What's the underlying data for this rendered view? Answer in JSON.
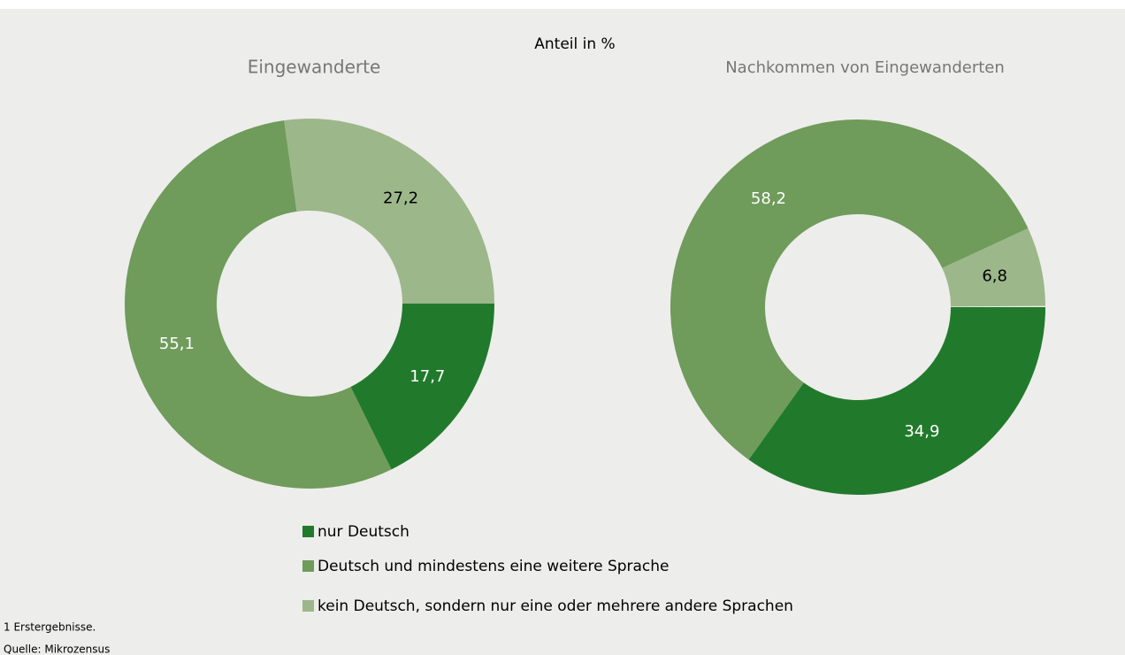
{
  "title": "Anteil in %",
  "chart_data": [
    {
      "type": "pie",
      "title": "Eingewanderte",
      "categories": [
        "nur Deutsch",
        "Deutsch und mindestens eine weitere Sprache",
        "kein Deutsch, sondern nur eine oder mehrere andere Sprachen"
      ],
      "values": [
        17.7,
        55.1,
        27.2
      ],
      "value_labels": [
        "17,7",
        "55,1",
        "27,2"
      ],
      "colors": [
        "#217a2c",
        "#6f9b5b",
        "#9cb78a"
      ]
    },
    {
      "type": "pie",
      "title": "Nachkommen von Eingewanderten",
      "categories": [
        "nur Deutsch",
        "Deutsch und mindestens eine weitere Sprache",
        "kein Deutsch, sondern nur eine oder mehrere andere Sprachen"
      ],
      "values": [
        34.9,
        58.2,
        6.8
      ],
      "value_labels": [
        "34,9",
        "58,2",
        "6,8"
      ],
      "colors": [
        "#217a2c",
        "#6f9b5b",
        "#9cb78a"
      ]
    }
  ],
  "footnotes": [
    "1 Erstergebnisse.",
    "Quelle: Mikrozensus"
  ]
}
